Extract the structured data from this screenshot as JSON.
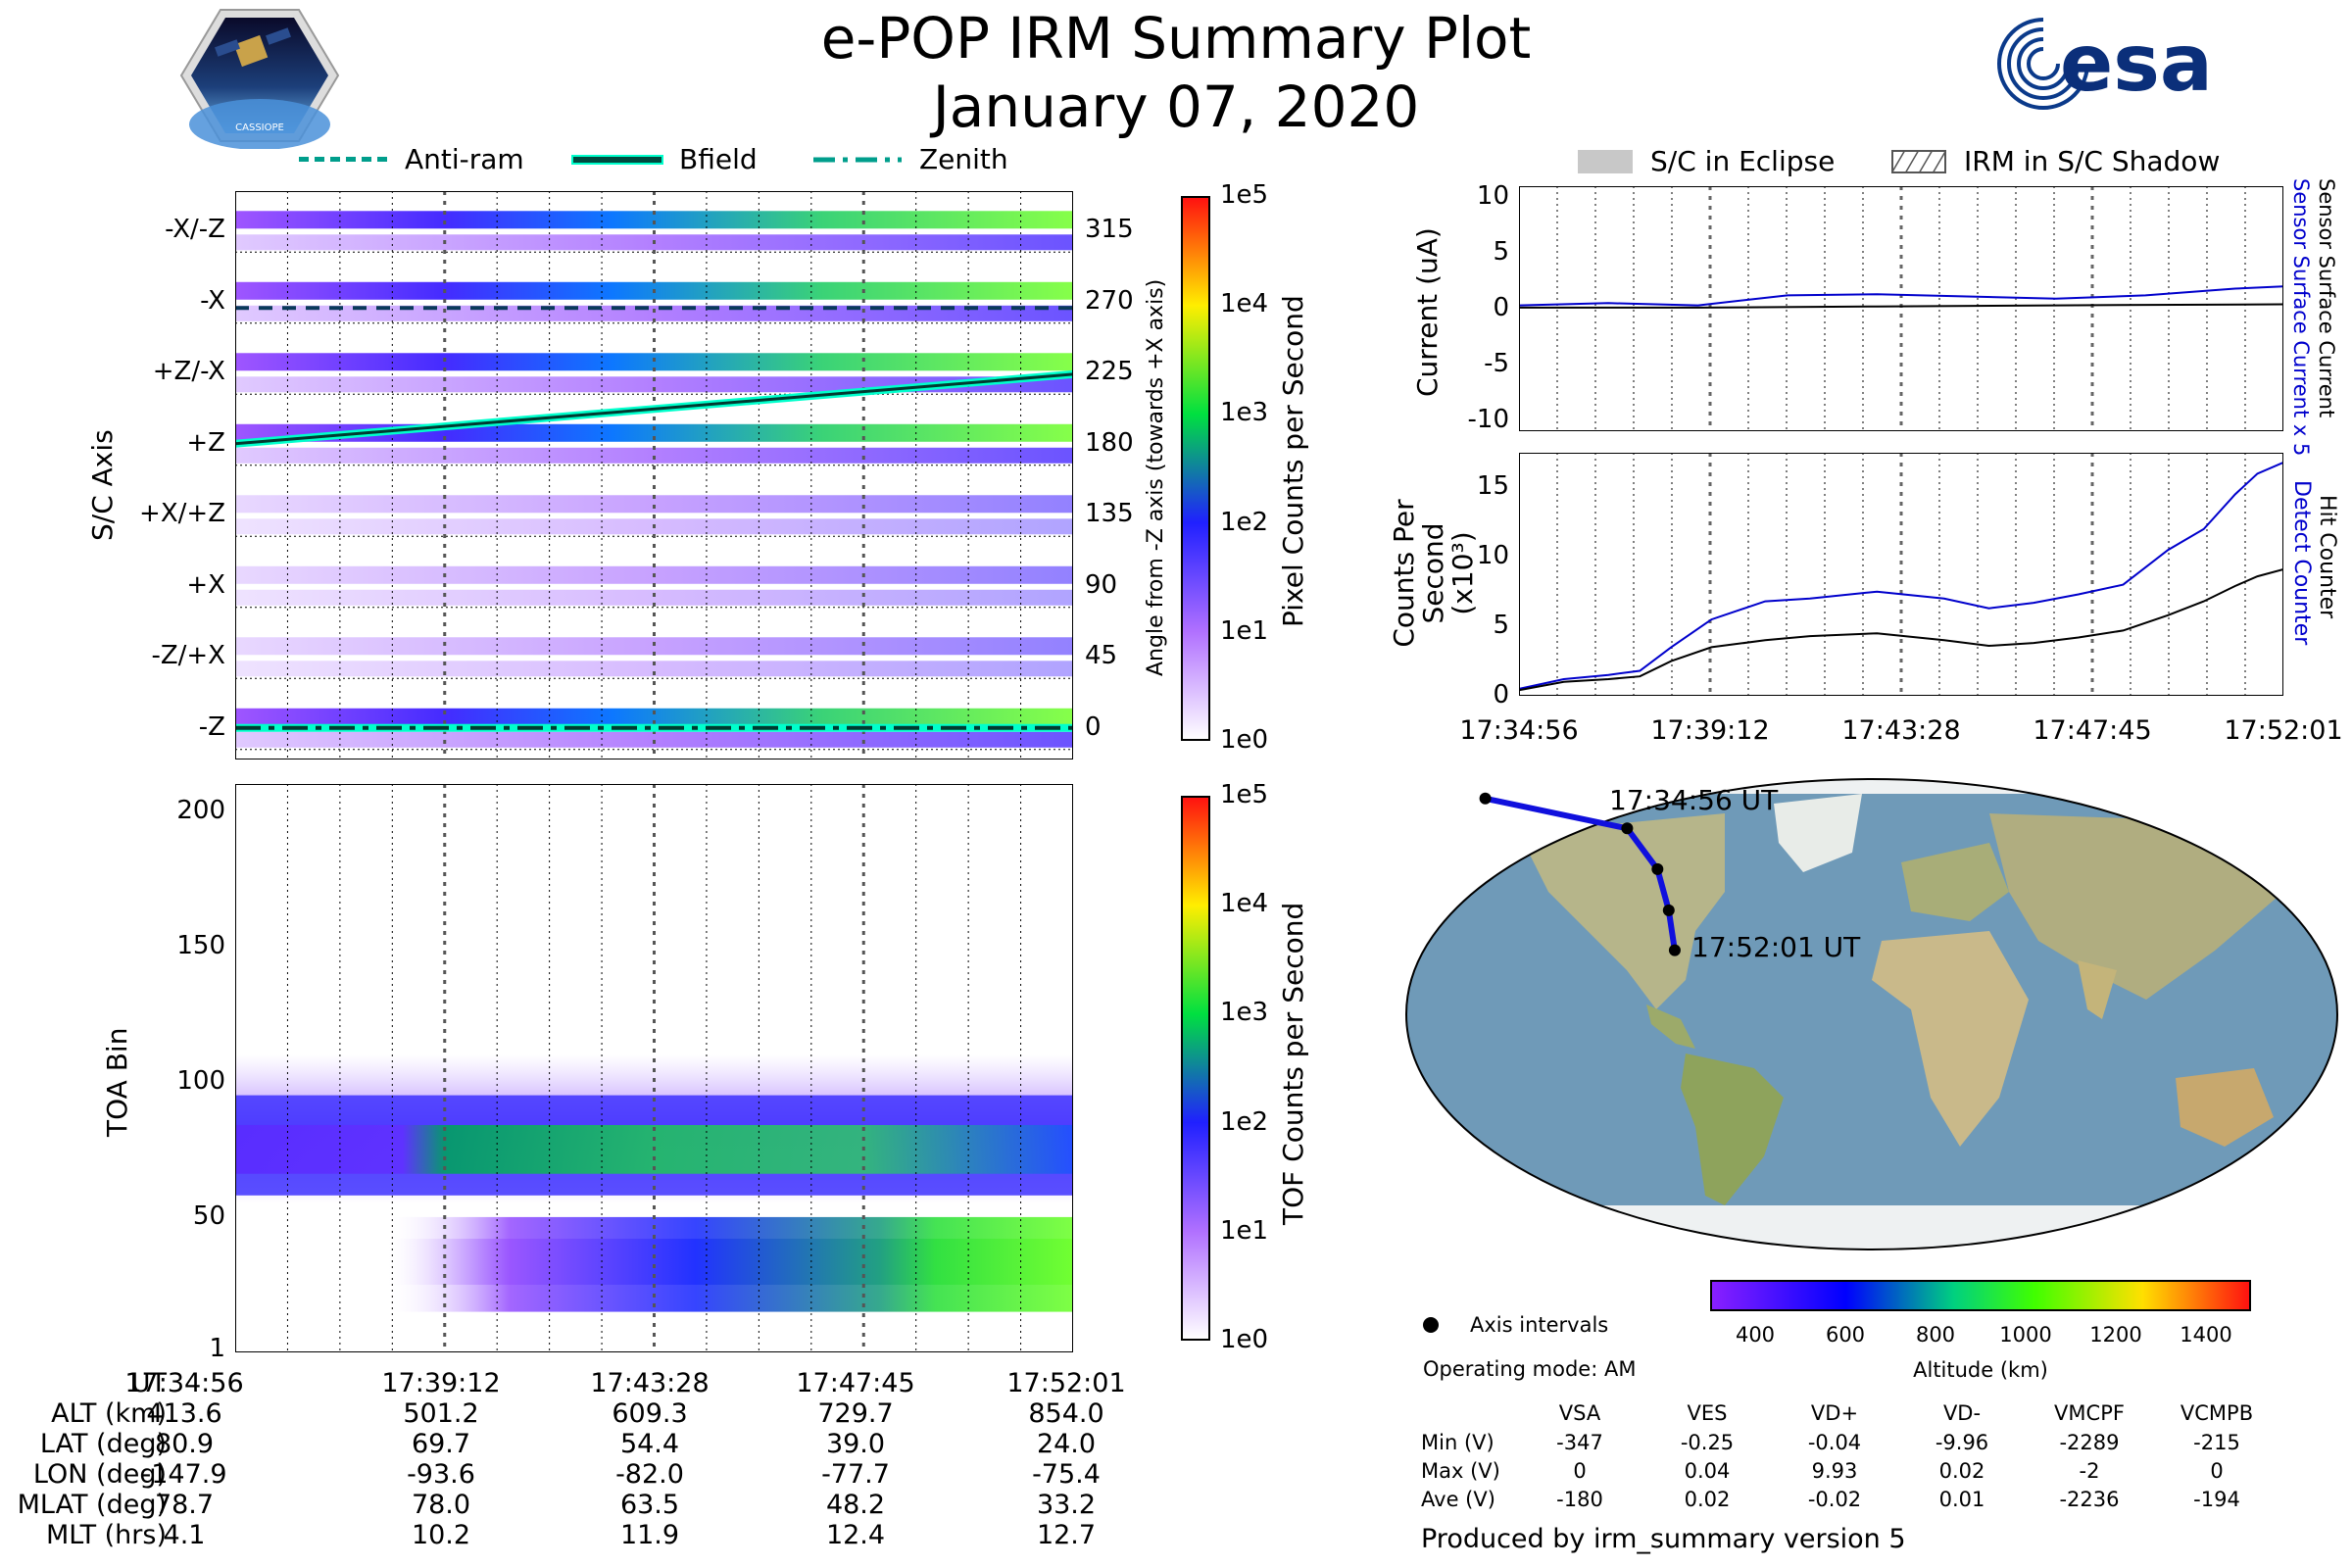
{
  "header": {
    "title": "e-POP IRM Summary Plot",
    "date": "January 07, 2020",
    "mission_badge_text": "CASSIOPE",
    "agency_logo_text": "esa"
  },
  "legend_left": [
    {
      "label": "Anti-ram",
      "style": "dashed"
    },
    {
      "label": "Bfield",
      "style": "solid"
    },
    {
      "label": "Zenith",
      "style": "dashdot"
    }
  ],
  "legend_right": [
    {
      "label": "S/C in Eclipse",
      "style": "gray-box"
    },
    {
      "label": "IRM in S/C Shadow",
      "style": "hatched-box"
    }
  ],
  "time_ticks": [
    "17:34:56",
    "17:39:12",
    "17:43:28",
    "17:47:45",
    "17:52:01"
  ],
  "colors": {
    "purple": "#8a2be2",
    "blue": "#0000ff",
    "green": "#22cc22",
    "teal": "#00ffcc",
    "map_ocean": "#6f9ab8",
    "map_land": "#b6b58a"
  },
  "chart_data": [
    {
      "type": "heatmap",
      "name": "pixel-counts",
      "ylabel": "S/C Axis",
      "axis_labels": [
        "-X/-Z",
        "-X",
        "+Z/-X",
        "+Z",
        "+X/+Z",
        "+X",
        "-Z/+X",
        "-Z"
      ],
      "angle_ticks": [
        315,
        270,
        225,
        180,
        135,
        90,
        45,
        0
      ],
      "angle_label": "Angle from -Z axis (towards +X axis)",
      "ylim": [
        -20,
        340
      ],
      "bfield_angle": [
        180,
        224
      ],
      "antiram_angle": 266,
      "zenith_angle": 0,
      "colorbar": {
        "label": "Pixel Counts per Second",
        "ticks": [
          "1e5",
          "1e4",
          "1e3",
          "1e2",
          "1e1",
          "1e0"
        ]
      }
    },
    {
      "type": "heatmap",
      "name": "toa-histogram",
      "ylabel": "TOA Bin",
      "yticks": [
        1,
        50,
        100,
        150,
        200
      ],
      "ylim": [
        0,
        210
      ],
      "colorbar": {
        "label": "TOF Counts per Second",
        "ticks": [
          "1e5",
          "1e4",
          "1e3",
          "1e2",
          "1e1",
          "1e0"
        ]
      }
    },
    {
      "type": "line",
      "name": "current",
      "ylabel": "Current (uA)",
      "ylim": [
        -11,
        11
      ],
      "yticks": [
        10,
        5,
        0,
        -5,
        -10
      ],
      "right_labels": [
        "Sensor Surface Current x 5",
        "Sensor Surface Current"
      ],
      "series": [
        {
          "name": "Sensor Surface Current x 5",
          "color": "#0000cc",
          "x": [
            0,
            2,
            4,
            6,
            8,
            10,
            12,
            14,
            16,
            17.08
          ],
          "values": [
            0.3,
            0.5,
            0.3,
            1.2,
            1.3,
            1.1,
            0.9,
            1.2,
            1.8,
            2.0
          ]
        },
        {
          "name": "Sensor Surface Current",
          "color": "#000000",
          "x": [
            0,
            4,
            8,
            12,
            17.08
          ],
          "values": [
            0.1,
            0.1,
            0.2,
            0.3,
            0.4
          ]
        }
      ]
    },
    {
      "type": "line",
      "name": "counts",
      "ylabel": "Counts Per Second (x10³)",
      "ylim": [
        0,
        17.5
      ],
      "yticks": [
        0,
        5,
        10,
        15
      ],
      "right_labels": [
        "Detect Counter",
        "Hit Counter"
      ],
      "series": [
        {
          "name": "Detect Counter",
          "color": "#0000cc",
          "x": [
            0,
            1,
            2,
            2.7,
            3.4,
            4.3,
            5.5,
            6.5,
            8,
            9.5,
            10.5,
            11.5,
            12.5,
            13.5,
            14.5,
            15.3,
            16,
            16.5,
            17.08
          ],
          "values": [
            0.5,
            1.2,
            1.5,
            1.8,
            3.5,
            5.5,
            6.8,
            7.0,
            7.5,
            7.0,
            6.3,
            6.7,
            7.3,
            8.0,
            10.5,
            12.0,
            14.5,
            16.0,
            16.8
          ]
        },
        {
          "name": "Hit Counter",
          "color": "#000000",
          "x": [
            0,
            1,
            2,
            2.7,
            3.4,
            4.3,
            5.5,
            6.5,
            8,
            9.5,
            10.5,
            11.5,
            12.5,
            13.5,
            14.5,
            15.3,
            16,
            16.5,
            17.08
          ],
          "values": [
            0.4,
            1.0,
            1.2,
            1.4,
            2.5,
            3.5,
            4.0,
            4.3,
            4.5,
            4.0,
            3.6,
            3.8,
            4.2,
            4.7,
            5.8,
            6.8,
            7.9,
            8.6,
            9.1
          ]
        }
      ],
      "xticks": [
        "17:34:56",
        "17:39:12",
        "17:43:28",
        "17:47:45",
        "17:52:01"
      ]
    },
    {
      "type": "scatter",
      "name": "ground-track",
      "start_label": "17:34:56 UT",
      "end_label": "17:52:01 UT",
      "track_lon": [
        -147.9,
        -93.6,
        -82.0,
        -77.7,
        -75.4
      ],
      "track_lat": [
        80.9,
        69.7,
        54.4,
        39.0,
        24.0
      ],
      "colorbar": {
        "label": "Altitude (km)",
        "ticks": [
          "400",
          "600",
          "800",
          "1000",
          "1200",
          "1400"
        ],
        "range": [
          300,
          1500
        ]
      }
    }
  ],
  "orbit_table": {
    "rows": [
      {
        "label": "UT",
        "values": [
          "17:34:56",
          "17:39:12",
          "17:43:28",
          "17:47:45",
          "17:52:01"
        ]
      },
      {
        "label": "ALT (km)",
        "values": [
          "413.6",
          "501.2",
          "609.3",
          "729.7",
          "854.0"
        ]
      },
      {
        "label": "LAT (deg)",
        "values": [
          "80.9",
          "69.7",
          "54.4",
          "39.0",
          "24.0"
        ]
      },
      {
        "label": "LON (deg)",
        "values": [
          "-147.9",
          "-93.6",
          "-82.0",
          "-77.7",
          "-75.4"
        ]
      },
      {
        "label": "MLAT (deg)",
        "values": [
          "78.7",
          "78.0",
          "63.5",
          "48.2",
          "33.2"
        ]
      },
      {
        "label": "MLT (hrs)",
        "values": [
          "4.1",
          "10.2",
          "11.9",
          "12.4",
          "12.7"
        ]
      }
    ]
  },
  "info": {
    "axis_intervals": "Axis intervals",
    "operating_mode": "Operating mode: AM",
    "voltage_headers": [
      "VSA",
      "VES",
      "VD+",
      "VD-",
      "VMCPF",
      "VCMPB"
    ],
    "voltage_rows": [
      {
        "label": "Min (V)",
        "values": [
          "-347",
          "-0.25",
          "-0.04",
          "-9.96",
          "-2289",
          "-215"
        ]
      },
      {
        "label": "Max (V)",
        "values": [
          "0",
          "0.04",
          "9.93",
          "0.02",
          "-2",
          "0"
        ]
      },
      {
        "label": "Ave (V)",
        "values": [
          "-180",
          "0.02",
          "-0.02",
          "0.01",
          "-2236",
          "-194"
        ]
      }
    ],
    "produced_by": "Produced by irm_summary version 5"
  }
}
